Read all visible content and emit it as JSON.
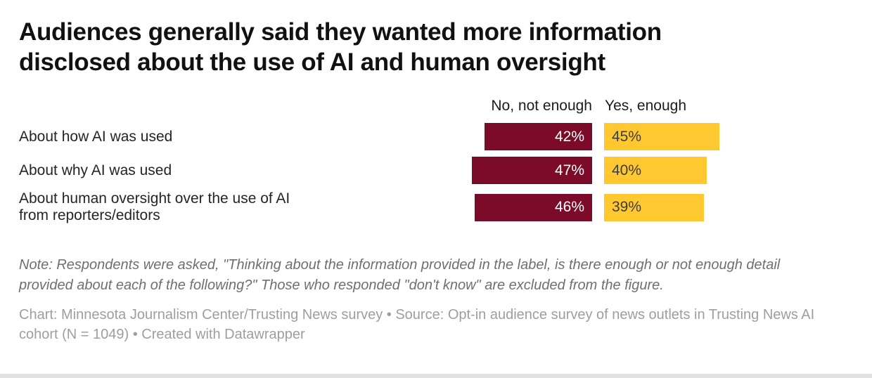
{
  "title_lines": [
    "Audiences generally said they wanted more information",
    "disclosed about the use of AI and human oversight"
  ],
  "chart_data": {
    "type": "bar",
    "variant": "horizontal-paired-diverging",
    "title": "Audiences generally said they wanted more information disclosed about the use of AI and human oversight",
    "categories": [
      "About how AI was used",
      "About why AI was used",
      "About human oversight over the use of AI from reporters/editors"
    ],
    "series": [
      {
        "name": "No, not enough",
        "color": "#7b0b29",
        "text_color": "#ffffff",
        "values": [
          42,
          47,
          46
        ]
      },
      {
        "name": "Yes, enough",
        "color": "#ffc831",
        "text_color": "#3d3d3d",
        "values": [
          45,
          40,
          39
        ]
      }
    ],
    "value_suffix": "%",
    "xlim": [
      0,
      50
    ],
    "grid": false,
    "legend_position": "column-headers-above-bars"
  },
  "note": "Note: Respondents were asked, \"Thinking about the information provided in the label, is there enough or not enough detail provided about each of the following?\" Those who responded \"don't know\" are excluded from the figure.",
  "credit": "Chart: Minnesota Journalism Center/Trusting News survey • Source: Opt-in audience survey of news outlets in Trusting News AI cohort (N = 1049) • Created with Datawrapper"
}
